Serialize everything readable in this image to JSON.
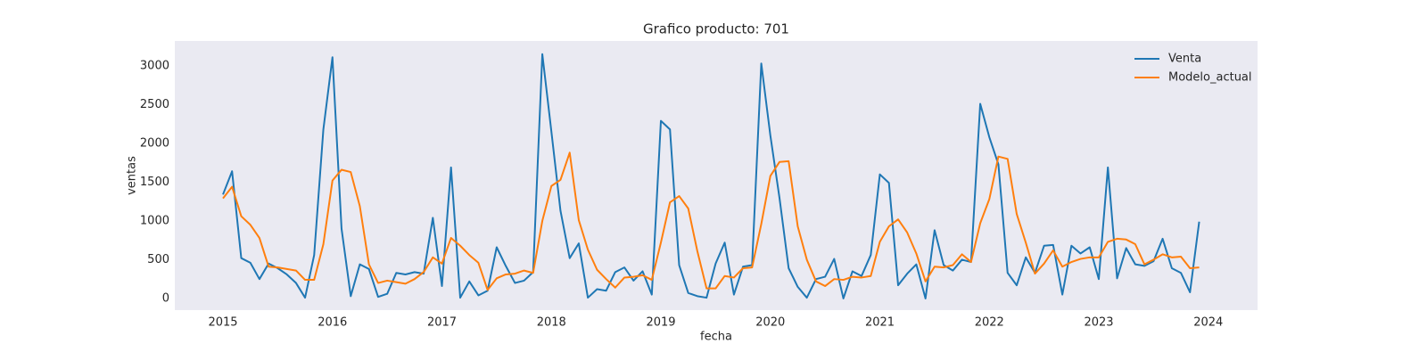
{
  "chart_data": {
    "type": "line",
    "title": "Grafico producto: 701",
    "x_label": "fecha",
    "y_label": "ventas",
    "x": [
      2015.0,
      2015.083,
      2015.167,
      2015.25,
      2015.333,
      2015.417,
      2015.5,
      2015.583,
      2015.667,
      2015.75,
      2015.833,
      2015.917,
      2016.0,
      2016.083,
      2016.167,
      2016.25,
      2016.333,
      2016.417,
      2016.5,
      2016.583,
      2016.667,
      2016.75,
      2016.833,
      2016.917,
      2017.0,
      2017.083,
      2017.167,
      2017.25,
      2017.333,
      2017.417,
      2017.5,
      2017.583,
      2017.667,
      2017.75,
      2017.833,
      2017.917,
      2018.0,
      2018.083,
      2018.167,
      2018.25,
      2018.333,
      2018.417,
      2018.5,
      2018.583,
      2018.667,
      2018.75,
      2018.833,
      2018.917,
      2019.0,
      2019.083,
      2019.167,
      2019.25,
      2019.333,
      2019.417,
      2019.5,
      2019.583,
      2019.667,
      2019.75,
      2019.833,
      2019.917,
      2020.0,
      2020.083,
      2020.167,
      2020.25,
      2020.333,
      2020.417,
      2020.5,
      2020.583,
      2020.667,
      2020.75,
      2020.833,
      2020.917,
      2021.0,
      2021.083,
      2021.167,
      2021.25,
      2021.333,
      2021.417,
      2021.5,
      2021.583,
      2021.667,
      2021.75,
      2021.833,
      2021.917,
      2022.0,
      2022.083,
      2022.167,
      2022.25,
      2022.333,
      2022.417,
      2022.5,
      2022.583,
      2022.667,
      2022.75,
      2022.833,
      2022.917,
      2023.0,
      2023.083,
      2023.167,
      2023.25,
      2023.333,
      2023.417,
      2023.5,
      2023.583,
      2023.667,
      2023.75,
      2023.833,
      2023.917
    ],
    "series": [
      {
        "name": "Venta",
        "color": "#1f77b4",
        "values": [
          1340,
          1640,
          520,
          460,
          250,
          450,
          390,
          310,
          200,
          10,
          560,
          2180,
          3110,
          900,
          30,
          440,
          380,
          20,
          60,
          330,
          310,
          340,
          320,
          1040,
          160,
          1690,
          10,
          220,
          40,
          100,
          660,
          420,
          200,
          230,
          340,
          3150,
          2150,
          1130,
          520,
          710,
          10,
          120,
          100,
          340,
          400,
          230,
          350,
          50,
          2290,
          2180,
          430,
          70,
          30,
          10,
          450,
          720,
          50,
          410,
          430,
          3030,
          2100,
          1300,
          390,
          150,
          10,
          250,
          280,
          510,
          0,
          350,
          290,
          560,
          1600,
          1490,
          170,
          320,
          440,
          0,
          880,
          430,
          360,
          500,
          470,
          2510,
          2080,
          1730,
          330,
          170,
          530,
          330,
          680,
          690,
          50,
          680,
          580,
          660,
          250,
          1690,
          260,
          650,
          440,
          420,
          480,
          770,
          390,
          330,
          80,
          990
        ]
      },
      {
        "name": "Modelo_actual",
        "color": "#ff7f0e",
        "values": [
          1290,
          1440,
          1060,
          950,
          780,
          410,
          400,
          380,
          360,
          240,
          240,
          700,
          1520,
          1660,
          1630,
          1190,
          440,
          200,
          230,
          210,
          190,
          250,
          340,
          530,
          450,
          780,
          680,
          560,
          460,
          110,
          260,
          310,
          320,
          360,
          330,
          1000,
          1450,
          1530,
          1880,
          1010,
          630,
          370,
          250,
          140,
          270,
          280,
          300,
          240,
          720,
          1240,
          1320,
          1160,
          610,
          130,
          130,
          290,
          270,
          390,
          400,
          960,
          1580,
          1760,
          1770,
          930,
          500,
          220,
          160,
          250,
          240,
          280,
          270,
          290,
          730,
          930,
          1020,
          850,
          580,
          220,
          410,
          400,
          430,
          570,
          470,
          970,
          1280,
          1830,
          1800,
          1090,
          720,
          320,
          450,
          620,
          410,
          470,
          510,
          530,
          530,
          730,
          770,
          760,
          700,
          440,
          500,
          570,
          530,
          540,
          390,
          400
        ]
      }
    ],
    "xlim": [
      2014.56,
      2024.45
    ],
    "xticks": [
      2015,
      2016,
      2017,
      2018,
      2019,
      2020,
      2021,
      2022,
      2023,
      2024
    ],
    "ylim": [
      -150,
      3320
    ],
    "yticks": [
      0,
      500,
      1000,
      1500,
      2000,
      2500,
      3000
    ],
    "grid": false,
    "legend": "upper right",
    "background": "#eaeaf2"
  }
}
